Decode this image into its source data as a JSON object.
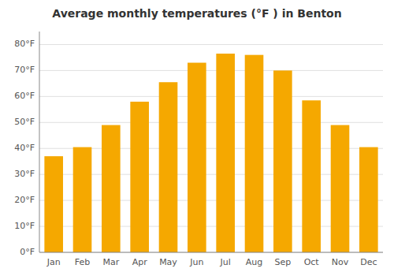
{
  "chart_data": {
    "type": "bar",
    "title": "Average monthly temperatures (°F ) in Benton",
    "categories": [
      "Jan",
      "Feb",
      "Mar",
      "Apr",
      "May",
      "Jun",
      "Jul",
      "Aug",
      "Sep",
      "Oct",
      "Nov",
      "Dec"
    ],
    "values": [
      37,
      40.5,
      49,
      58,
      65.5,
      73,
      76.5,
      76,
      70,
      58.5,
      49,
      40.5
    ],
    "color": "#F5A800",
    "ylim": [
      0,
      85
    ],
    "yticks": [
      {
        "value": 0,
        "label": "0°F"
      },
      {
        "value": 10,
        "label": "10°F"
      },
      {
        "value": 20,
        "label": "20°F"
      },
      {
        "value": 30,
        "label": "30°F"
      },
      {
        "value": 40,
        "label": "40°F"
      },
      {
        "value": 50,
        "label": "50°F"
      },
      {
        "value": 60,
        "label": "60°F"
      },
      {
        "value": 70,
        "label": "70°F"
      },
      {
        "value": 80,
        "label": "80°F"
      }
    ],
    "grid": true
  }
}
